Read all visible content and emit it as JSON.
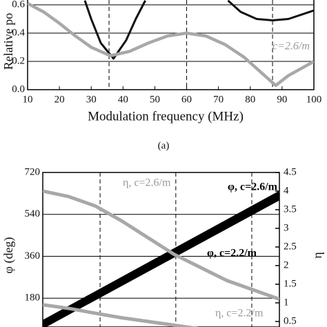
{
  "chart_data": [
    {
      "type": "line",
      "ylabel": "Relative po",
      "xlabel": "Modulation frequency (MHz)",
      "caption": "(a)",
      "xlim": [
        10,
        100
      ],
      "xticks": [
        10,
        20,
        30,
        40,
        50,
        60,
        70,
        80,
        90,
        100
      ],
      "ylim": [
        0,
        0.6
      ],
      "yticks": [
        {
          "value": 0,
          "label": "0.0"
        },
        0.2,
        0.4,
        0.6
      ],
      "grid": true,
      "reference_lines_x": [
        35.6,
        60,
        87
      ],
      "annotations": [
        "c=2.6/m"
      ],
      "series": [
        {
          "color": "#111111",
          "x": [
            28,
            30,
            33,
            37,
            41,
            44,
            47,
            60,
            73,
            77,
            82,
            87,
            92,
            96,
            100
          ],
          "values": [
            0.63,
            0.5,
            0.33,
            0.22,
            0.35,
            0.5,
            0.63,
            null,
            0.63,
            0.55,
            0.5,
            0.49,
            0.5,
            0.53,
            0.56
          ]
        },
        {
          "color": "#a8a8a8",
          "x": [
            10,
            15,
            20,
            25,
            30,
            36,
            42,
            48,
            54,
            60,
            66,
            72,
            78,
            83,
            87,
            88,
            92,
            96,
            100
          ],
          "values": [
            0.61,
            0.55,
            0.47,
            0.38,
            0.3,
            0.24,
            0.27,
            0.33,
            0.38,
            0.4,
            0.38,
            0.32,
            0.23,
            0.13,
            0.05,
            0.03,
            0.1,
            0.15,
            0.2
          ]
        }
      ]
    },
    {
      "type": "line",
      "ylabel": "φ (deg)",
      "y2label": "η",
      "xlim": [
        10,
        100
      ],
      "ylim": [
        0,
        720
      ],
      "yticks": [
        180,
        360,
        540,
        720
      ],
      "y2lim": [
        0,
        4.5
      ],
      "y2ticks": [
        0.5,
        1.0,
        1.5,
        2.0,
        2.5,
        3.0,
        3.5,
        4.0,
        4.5
      ],
      "grid": true,
      "reference_lines_x": [
        31.8,
        60.6,
        89.5
      ],
      "series": [
        {
          "name": "φ, c=2.6/m",
          "color": "#000000",
          "x": [
            10,
            100
          ],
          "values": [
            75,
            630
          ]
        },
        {
          "name": "φ, c=2.2/m",
          "color": "#000000",
          "x": [
            10,
            100
          ],
          "values": [
            60,
            612
          ]
        },
        {
          "name": "η, c=2.6/m",
          "color": "#a8a8a8",
          "axis": "y2",
          "x": [
            10,
            20,
            30,
            40,
            50,
            60,
            70,
            80,
            90,
            100
          ],
          "values": [
            4.0,
            3.85,
            3.6,
            3.2,
            2.75,
            2.3,
            1.95,
            1.6,
            1.35,
            1.1
          ]
        },
        {
          "name": "η, c=2.2/m",
          "color": "#a8a8a8",
          "axis": "y2",
          "x": [
            10,
            20,
            30,
            40,
            50,
            60,
            70
          ],
          "values": [
            0.95,
            0.85,
            0.72,
            0.6,
            0.5,
            0.4,
            0.3
          ]
        }
      ]
    }
  ]
}
